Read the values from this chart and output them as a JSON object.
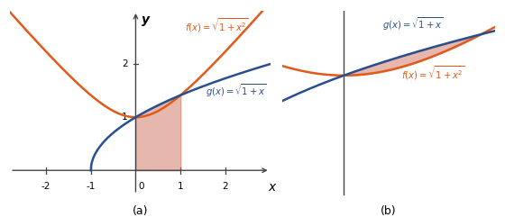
{
  "orange_color": "#E05A1A",
  "blue_color": "#2A4F8F",
  "shade_color": "#C8614A",
  "shade_alpha": 0.45,
  "xlim_a": [
    -2.8,
    3.0
  ],
  "ylim_a": [
    -0.55,
    3.0
  ],
  "xlim_b": [
    -0.45,
    1.1
  ],
  "ylim_b": [
    -0.25,
    1.65
  ],
  "tick_size": 0.06,
  "axis_color": "#444444",
  "label_a": "(a)",
  "label_b": "(b)"
}
